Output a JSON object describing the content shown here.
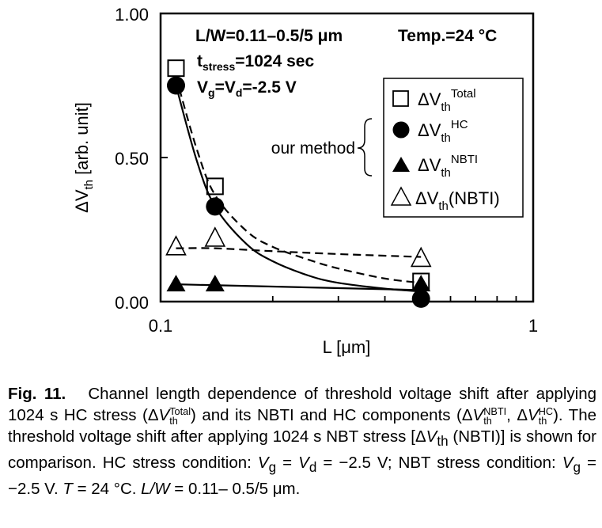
{
  "chart_data": {
    "type": "scatter",
    "xlabel": "L [μm]",
    "ylabel": "ΔV_th [arb. unit]",
    "x_scale": "log",
    "xlim": [
      0.1,
      1
    ],
    "ylim": [
      0.0,
      1.0
    ],
    "x_ticks": [
      "0.1",
      "1"
    ],
    "y_ticks": [
      "0.00",
      "0.50",
      "1.00"
    ],
    "annotations": {
      "geometry": "L/W=0.11–0.5/5 μm",
      "temperature": "Temp.=24 °C",
      "stress_time": "t_stress=1024 sec",
      "bias": "V_g=V_d=-2.5 V",
      "bracket_label": "our method"
    },
    "legend_position": "right",
    "series": [
      {
        "name": "ΔV_th^Total",
        "marker": "open-square",
        "x": [
          0.11,
          0.14,
          0.5
        ],
        "y": [
          0.81,
          0.4,
          0.07
        ]
      },
      {
        "name": "ΔV_th^HC",
        "marker": "filled-circle",
        "x": [
          0.11,
          0.14,
          0.5
        ],
        "y": [
          0.75,
          0.33,
          0.01
        ]
      },
      {
        "name": "ΔV_th^NBTI",
        "marker": "filled-triangle",
        "x": [
          0.11,
          0.14,
          0.5
        ],
        "y": [
          0.06,
          0.06,
          0.06
        ]
      },
      {
        "name": "ΔV_th(NBTI)",
        "marker": "open-triangle",
        "x": [
          0.11,
          0.14,
          0.5
        ],
        "y": [
          0.19,
          0.22,
          0.15
        ]
      }
    ],
    "fits": [
      {
        "style": "solid",
        "label": "HC trend",
        "x": [
          0.11,
          0.125,
          0.14,
          0.17,
          0.2,
          0.25,
          0.3,
          0.4,
          0.5
        ],
        "y": [
          0.75,
          0.49,
          0.33,
          0.2,
          0.14,
          0.09,
          0.065,
          0.045,
          0.035
        ]
      },
      {
        "style": "dashed",
        "label": "Total trend",
        "x": [
          0.11,
          0.125,
          0.14,
          0.17,
          0.2,
          0.25,
          0.3,
          0.4,
          0.5
        ],
        "y": [
          0.78,
          0.53,
          0.37,
          0.245,
          0.19,
          0.145,
          0.115,
          0.08,
          0.065
        ]
      },
      {
        "style": "solid",
        "label": "NBTI trend",
        "x": [
          0.11,
          0.5
        ],
        "y": [
          0.06,
          0.04
        ]
      },
      {
        "style": "dashed",
        "label": "NBT stress trend",
        "x": [
          0.11,
          0.14,
          0.2,
          0.3,
          0.5
        ],
        "y": [
          0.185,
          0.185,
          0.175,
          0.165,
          0.155
        ]
      }
    ]
  },
  "caption": {
    "fig_label": "Fig. 11.",
    "text_a": "Channel length dependence of threshold voltage shift after applying 1024 s HC stress (",
    "total_sup": "Total",
    "sub_th": "th",
    "text_b": ") and its NBTI and HC components (",
    "nbti_sup": "NBTI",
    "hc_sup": "HC",
    "text_c": "). The threshold voltage shift after applying 1024 s NBT stress [",
    "nbti_paren": " (NBTI)] is shown for comparison. HC stress condition: ",
    "vg": "V",
    "sub_g": "g",
    "eq": " = ",
    "sub_d": "d",
    "hc_value": " = −2.5 V; NBT stress condition: ",
    "nbt_value": " = −2.5 V. ",
    "t_sym": "T",
    "t_value": " = 24 °C. ",
    "lw_sym": "L/W",
    "lw_value": " = 0.11– 0.5/5 μm."
  }
}
